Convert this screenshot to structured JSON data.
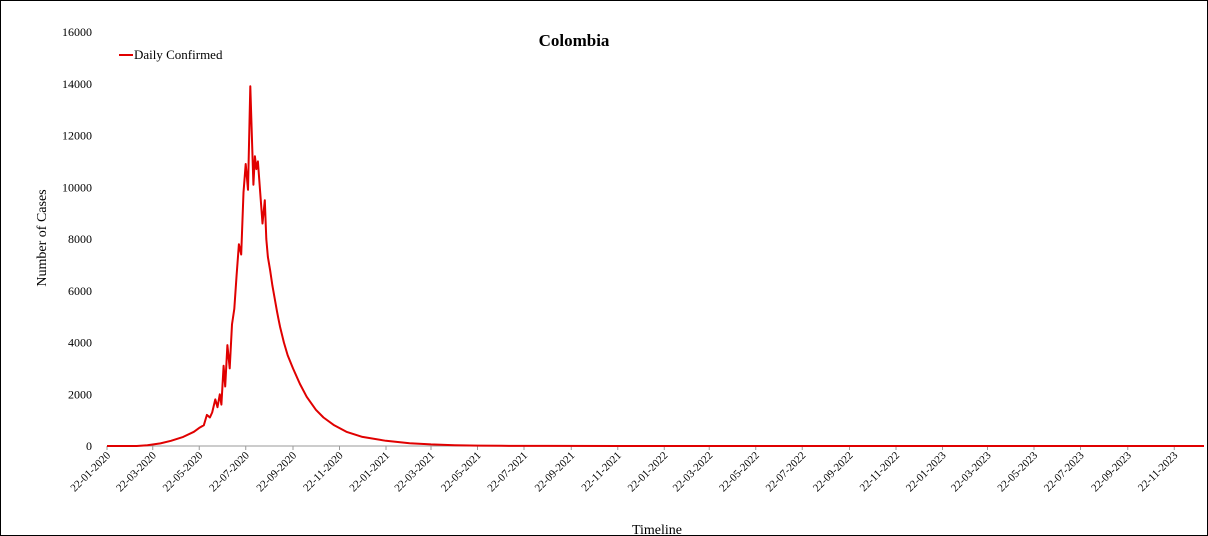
{
  "chart_data": {
    "type": "line",
    "title": "Colombia",
    "xlabel": "Timeline",
    "ylabel": "Number of Cases",
    "ylim": [
      0,
      16000
    ],
    "yticks": [
      0,
      2000,
      4000,
      6000,
      8000,
      10000,
      12000,
      14000,
      16000
    ],
    "x_start": "22-01-2020",
    "x_end": "31-12-2023",
    "xtick_labels": [
      "22-01-2020",
      "22-03-2020",
      "22-05-2020",
      "22-07-2020",
      "22-09-2020",
      "22-11-2020",
      "22-01-2021",
      "22-03-2021",
      "22-05-2021",
      "22-07-2021",
      "22-09-2021",
      "22-11-2021",
      "22-01-2022",
      "22-03-2022",
      "22-05-2022",
      "22-07-2022",
      "22-09-2022",
      "22-11-2022",
      "22-01-2023",
      "22-03-2023",
      "22-05-2023",
      "22-07-2023",
      "22-09-2023",
      "22-11-2023"
    ],
    "grid": false,
    "legend_position": "top-left",
    "series": [
      {
        "name": "Daily Confirmed",
        "color": "#e00000",
        "x": [
          "22-01-2020",
          "01-03-2020",
          "15-03-2020",
          "01-04-2020",
          "15-04-2020",
          "01-05-2020",
          "15-05-2020",
          "22-05-2020",
          "28-05-2020",
          "01-06-2020",
          "05-06-2020",
          "08-06-2020",
          "12-06-2020",
          "15-06-2020",
          "18-06-2020",
          "20-06-2020",
          "23-06-2020",
          "25-06-2020",
          "28-06-2020",
          "01-07-2020",
          "04-07-2020",
          "07-07-2020",
          "10-07-2020",
          "13-07-2020",
          "16-07-2020",
          "19-07-2020",
          "22-07-2020",
          "25-07-2020",
          "28-07-2020",
          "01-08-2020",
          "03-08-2020",
          "05-08-2020",
          "07-08-2020",
          "10-08-2020",
          "13-08-2020",
          "16-08-2020",
          "18-08-2020",
          "20-08-2020",
          "23-08-2020",
          "26-08-2020",
          "29-08-2020",
          "01-09-2020",
          "03-09-2020",
          "05-09-2020",
          "10-09-2020",
          "15-09-2020",
          "22-09-2020",
          "01-10-2020",
          "10-10-2020",
          "22-10-2020",
          "01-11-2020",
          "15-11-2020",
          "01-12-2020",
          "22-12-2020",
          "22-01-2021",
          "22-02-2021",
          "22-03-2021",
          "22-04-2021",
          "22-05-2021",
          "22-06-2021",
          "22-08-2021",
          "22-11-2021",
          "22-03-2022",
          "22-08-2022",
          "22-01-2023",
          "22-06-2023",
          "22-11-2023",
          "31-12-2023"
        ],
        "values": [
          0,
          0,
          30,
          100,
          200,
          350,
          550,
          700,
          800,
          1200,
          1100,
          1300,
          1800,
          1500,
          2000,
          1600,
          3100,
          2300,
          3900,
          3000,
          4700,
          5300,
          6600,
          7800,
          7400,
          9800,
          10900,
          9900,
          13900,
          10100,
          11200,
          10700,
          11000,
          9800,
          8600,
          9500,
          8000,
          7300,
          6800,
          6200,
          5700,
          5200,
          4900,
          4600,
          4000,
          3500,
          3000,
          2400,
          1900,
          1400,
          1100,
          800,
          550,
          350,
          200,
          110,
          60,
          30,
          15,
          8,
          3,
          0,
          0,
          0,
          0,
          0,
          0,
          0
        ]
      }
    ]
  }
}
